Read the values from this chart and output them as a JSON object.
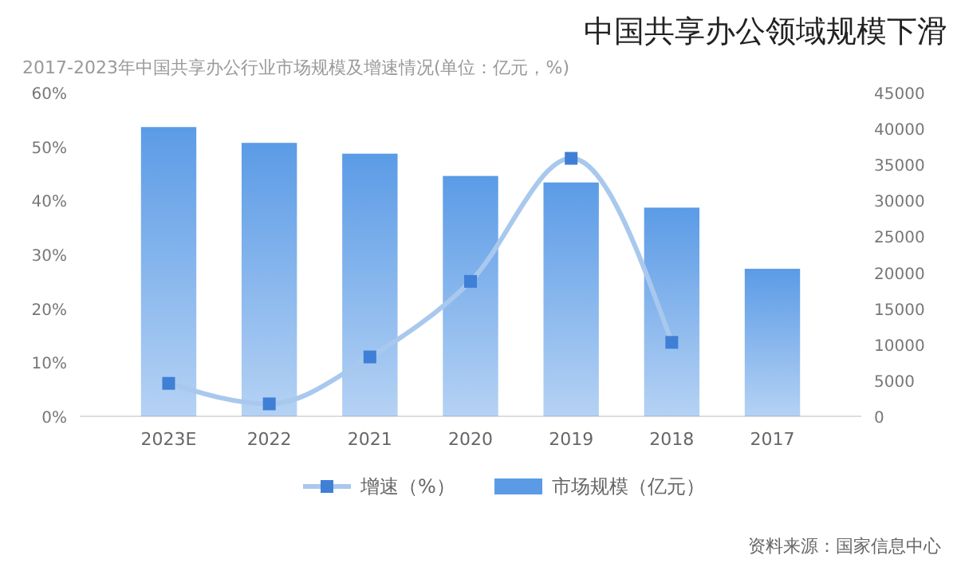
{
  "chart_data": {
    "type": "bar",
    "title": "中国共享办公领域规模下滑",
    "subtitle": "2017-2023年中国共享办公行业市场规模及增速情况(单位：亿元，%)",
    "categories": [
      "2023E",
      "2022",
      "2021",
      "2020",
      "2019",
      "2018",
      "2017"
    ],
    "series": [
      {
        "name": "增速（%）",
        "type": "line",
        "color": "#a9c8ee",
        "marker": "square",
        "values": [
          6.1,
          2.3,
          11,
          25,
          47.8,
          13.7,
          null
        ]
      },
      {
        "name": "市场规模（亿元）",
        "axis": "y2",
        "color": "#5b9be6",
        "values": [
          40200,
          38000,
          36500,
          33400,
          32500,
          29000,
          20500
        ]
      }
    ],
    "ylim": [
      0,
      60
    ],
    "yticks": [
      {
        "value": 0,
        "label": "0%"
      },
      {
        "value": 10,
        "label": "10%"
      },
      {
        "value": 20,
        "label": "20%"
      },
      {
        "value": 30,
        "label": "30%"
      },
      {
        "value": 40,
        "label": "40%"
      },
      {
        "value": 50,
        "label": "50%"
      },
      {
        "value": 60,
        "label": "60%"
      }
    ],
    "y2lim": [
      0,
      45000
    ],
    "y2ticks": [
      0,
      5000,
      10000,
      15000,
      20000,
      25000,
      30000,
      35000,
      40000,
      45000
    ],
    "legend": "bottom",
    "grid": false,
    "annotations": [
      "资料来源：国家信息中心"
    ]
  }
}
